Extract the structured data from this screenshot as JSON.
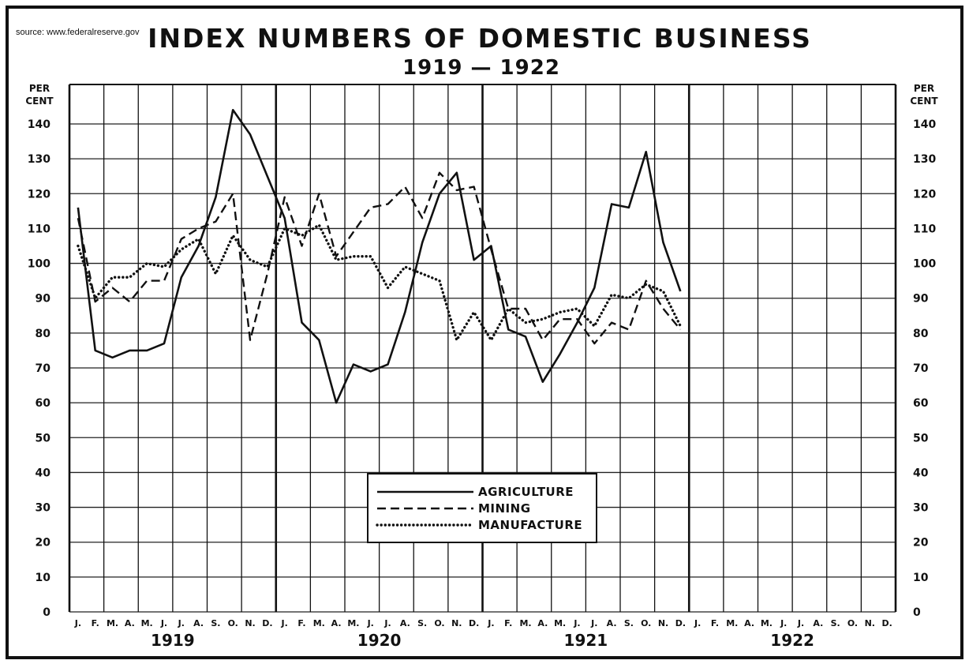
{
  "source_text": "source: www.federalreserve.gov",
  "chart_data": {
    "type": "line",
    "title": "INDEX NUMBERS OF DOMESTIC BUSINESS",
    "subtitle": "1919 — 1922",
    "ylabel_line1": "PER",
    "ylabel_line2": "CENT",
    "ylim": [
      0,
      140
    ],
    "yticks": [
      0,
      10,
      20,
      30,
      40,
      50,
      60,
      70,
      80,
      90,
      100,
      110,
      120,
      130,
      140
    ],
    "grid": true,
    "legend_position": "bottom-center",
    "month_labels": [
      "J.",
      "F.",
      "M.",
      "A.",
      "M.",
      "J.",
      "J.",
      "A.",
      "S.",
      "O.",
      "N.",
      "D."
    ],
    "years": [
      "1919",
      "1920",
      "1921",
      "1922"
    ],
    "series": [
      {
        "name": "AGRICULTURE",
        "style": "solid",
        "color": "#111111",
        "values": [
          116,
          75,
          73,
          75,
          75,
          77,
          96,
          105,
          119,
          144,
          137,
          125,
          113,
          83,
          78,
          60,
          71,
          69,
          71,
          86,
          106,
          120,
          126,
          101,
          105,
          81,
          79,
          66,
          74,
          83,
          93,
          117,
          116,
          132,
          106,
          92
        ]
      },
      {
        "name": "MINING",
        "style": "dashed",
        "color": "#111111",
        "values": [
          113,
          89,
          93,
          89,
          95,
          95,
          107,
          110,
          112,
          120,
          78,
          97,
          119,
          105,
          120,
          102,
          109,
          116,
          117,
          122,
          113,
          126,
          121,
          122,
          104,
          87,
          87,
          78,
          84,
          84,
          77,
          83,
          81,
          95,
          87,
          81
        ]
      },
      {
        "name": "MANUFACTURE",
        "style": "dotted",
        "color": "#111111",
        "values": [
          105,
          90,
          96,
          96,
          100,
          99,
          104,
          107,
          97,
          108,
          101,
          99,
          110,
          108,
          111,
          101,
          102,
          102,
          93,
          99,
          97,
          95,
          78,
          86,
          78,
          87,
          83,
          84,
          86,
          87,
          82,
          91,
          90,
          94,
          92,
          82
        ]
      }
    ]
  }
}
